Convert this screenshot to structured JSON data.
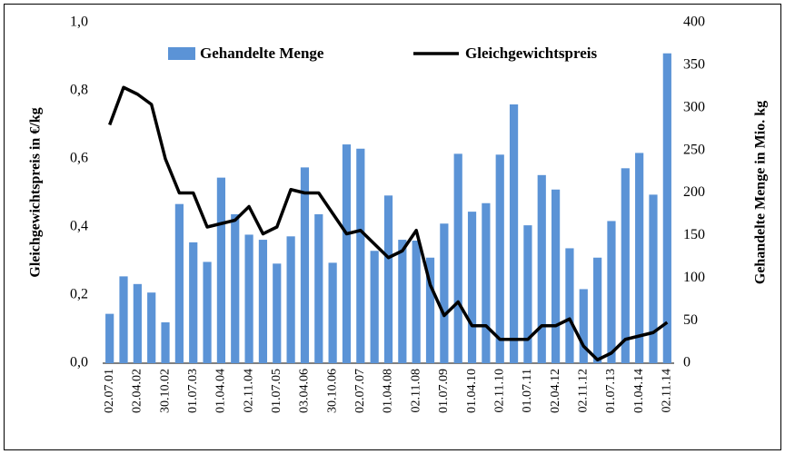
{
  "chart_data": {
    "type": "combo",
    "categories": [
      "02.07.01",
      null,
      "02.04.02",
      null,
      "30.10.02",
      null,
      "01.07.03",
      null,
      "01.04.04",
      null,
      "02.11.04",
      null,
      "01.07.05",
      null,
      "03.04.06",
      null,
      "30.10.06",
      null,
      "02.07.07",
      null,
      "01.04.08",
      null,
      "02.11.08",
      null,
      "01.07.09",
      null,
      "01.04.10",
      null,
      "02.11.10",
      null,
      "01.07.11",
      null,
      "02.04.12",
      null,
      "02.11.12",
      null,
      "01.07.13",
      null,
      "01.04.14",
      null,
      "02.11.14"
    ],
    "series": [
      {
        "name": "Gehandelte Menge",
        "type": "bar",
        "axis": "y2",
        "color": "#5b93d6",
        "values": [
          58,
          102,
          93,
          83,
          48,
          187,
          142,
          119,
          218,
          175,
          151,
          145,
          117,
          149,
          230,
          175,
          118,
          257,
          252,
          132,
          197,
          145,
          144,
          124,
          164,
          246,
          178,
          188,
          245,
          304,
          162,
          221,
          204,
          135,
          87,
          124,
          167,
          229,
          247,
          198,
          364
        ]
      },
      {
        "name": "Gleichgewichtspreis",
        "type": "line",
        "color": "#000000",
        "values": [
          0.7,
          0.81,
          0.79,
          0.76,
          0.6,
          0.5,
          0.5,
          0.4,
          0.41,
          0.42,
          0.46,
          0.38,
          0.4,
          0.51,
          0.5,
          0.5,
          0.44,
          0.38,
          0.39,
          0.35,
          0.31,
          0.33,
          0.39,
          0.23,
          0.14,
          0.18,
          0.11,
          0.11,
          0.07,
          0.07,
          0.07,
          0.11,
          0.11,
          0.13,
          0.05,
          0.01,
          0.03,
          0.07,
          0.08,
          0.09,
          0.12
        ]
      }
    ],
    "ylabel": "Gleichgewichtspreis in €/kg",
    "y2label": "Gehandelte Menge in Mio. kg",
    "ylim": [
      0,
      1
    ],
    "yticks": [
      {
        "value": 0,
        "label": "0,0"
      },
      {
        "value": 0.2,
        "label": "0,2"
      },
      {
        "value": 0.4,
        "label": "0,4"
      },
      {
        "value": 0.6,
        "label": "0,6"
      },
      {
        "value": 0.8,
        "label": "0,8"
      },
      {
        "value": 1,
        "label": "1,0"
      }
    ],
    "y2lim": [
      0,
      400
    ],
    "y2ticks": [
      0,
      50,
      100,
      150,
      200,
      250,
      300,
      350,
      400
    ]
  }
}
